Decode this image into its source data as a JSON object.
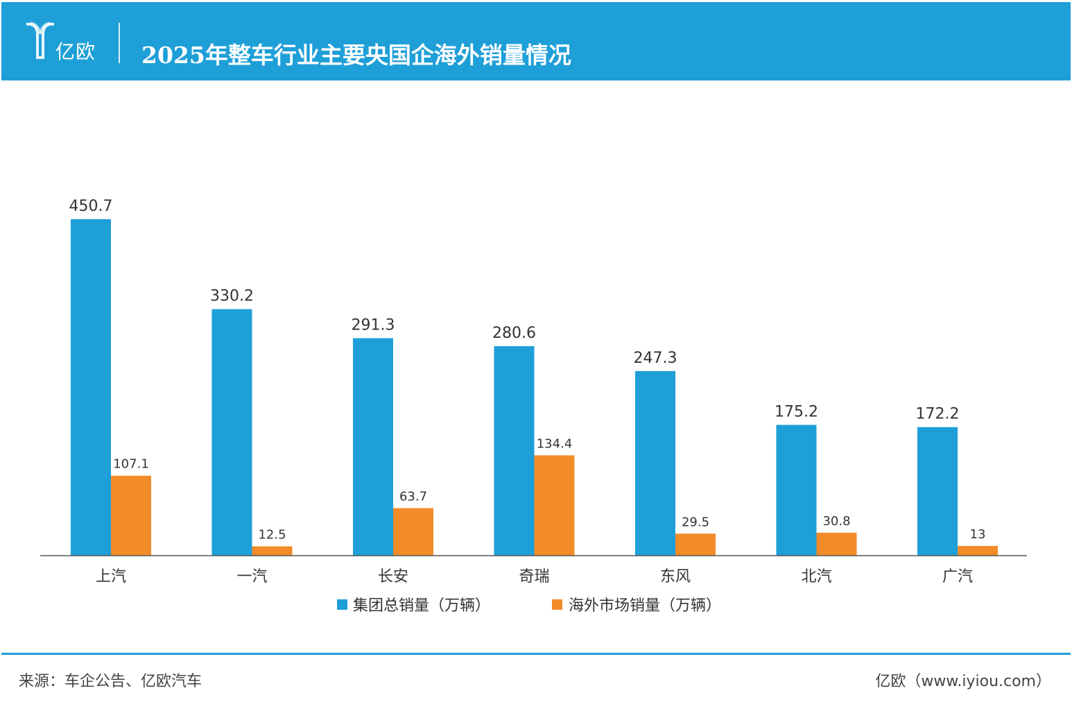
{
  "header": {
    "logo_text": "亿欧",
    "title": "2025年整车行业主要央国企海外销量情况"
  },
  "colors": {
    "header_bg": "#1e9fd8",
    "series_total": "#1e9fd8",
    "series_overseas": "#f28c28"
  },
  "chart_data": {
    "type": "bar",
    "title": "2025年整车行业主要央国企海外销量情况",
    "categories": [
      "上汽",
      "一汽",
      "长安",
      "奇瑞",
      "东风",
      "北汽",
      "广汽"
    ],
    "series": [
      {
        "name": "集团总销量（万辆）",
        "values": [
          450.7,
          330.2,
          291.3,
          280.6,
          247.3,
          175.2,
          172.2
        ],
        "labels": [
          "450.7",
          "330.2",
          "291.3",
          "280.6",
          "247.3",
          "175.2",
          "172.2"
        ]
      },
      {
        "name": "海外市场销量（万辆）",
        "values": [
          107.1,
          12.5,
          63.7,
          134.4,
          29.5,
          30.8,
          13
        ],
        "labels": [
          "107.1",
          "12.5",
          "63.7",
          "134.4",
          "29.5",
          "30.8",
          "13"
        ]
      }
    ],
    "xlabel": "",
    "ylabel": "",
    "ylim": [
      0,
      450.7
    ],
    "grid": false,
    "legend": "bottom-center"
  },
  "footer": {
    "source": "来源：车企公告、亿欧汽车",
    "site": "亿欧（www.iyiou.com）"
  }
}
